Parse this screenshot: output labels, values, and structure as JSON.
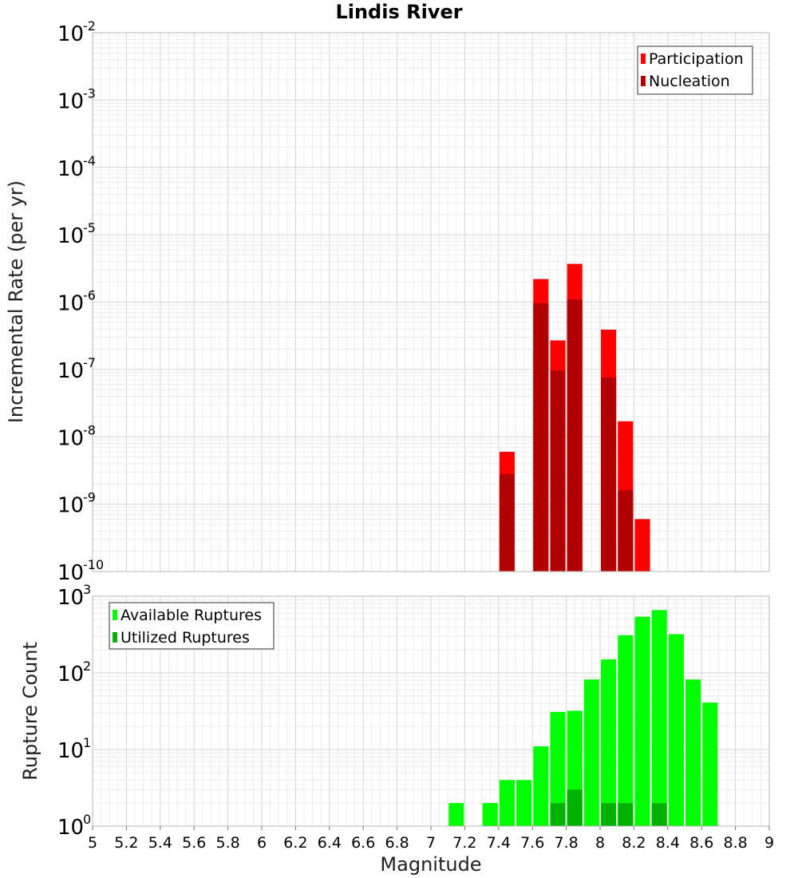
{
  "title": "Lindis River",
  "chart_data": [
    {
      "type": "bar",
      "subtype": "overlaid histogram",
      "scale_y": "log",
      "ylabel": "Incremental Rate (per yr)",
      "xlim": [
        5,
        9
      ],
      "ylim_exp": [
        -10,
        -2
      ],
      "grid": true,
      "legend_position": "top-right",
      "bar_width": 0.09,
      "series": [
        {
          "name": "Participation",
          "color": "#ff0000",
          "x": [
            7.45,
            7.65,
            7.75,
            7.85,
            8.05,
            8.15,
            8.25
          ],
          "values": [
            6e-09,
            2.2e-06,
            2.7e-07,
            3.7e-06,
            3.9e-07,
            1.7e-08,
            6e-10
          ]
        },
        {
          "name": "Nucleation",
          "color": "#b20000",
          "x": [
            7.45,
            7.65,
            7.75,
            7.85,
            8.05,
            8.15
          ],
          "values": [
            2.8e-09,
            9.6e-07,
            9.6e-08,
            1.1e-06,
            7.6e-08,
            1.6e-09
          ]
        }
      ]
    },
    {
      "type": "bar",
      "subtype": "overlaid histogram",
      "scale_y": "log",
      "ylabel": "Rupture Count",
      "xlabel": "Magnitude",
      "xlim": [
        5,
        9
      ],
      "ylim_exp": [
        0,
        3
      ],
      "grid": true,
      "legend_position": "top-left",
      "bar_width": 0.09,
      "xticks": [
        "5",
        "5.2",
        "5.4",
        "5.6",
        "5.8",
        "6",
        "6.2",
        "6.4",
        "6.6",
        "6.8",
        "7",
        "7.2",
        "7.4",
        "7.6",
        "7.8",
        "8",
        "8.2",
        "8.4",
        "8.6",
        "8.8",
        "9"
      ],
      "series": [
        {
          "name": "Available Ruptures",
          "color": "#00ff00",
          "x": [
            7.15,
            7.35,
            7.45,
            7.55,
            7.65,
            7.75,
            7.85,
            7.95,
            8.05,
            8.15,
            8.25,
            8.35,
            8.45,
            8.55,
            8.65
          ],
          "values": [
            2,
            2,
            4,
            4,
            11,
            31,
            32,
            82,
            150,
            310,
            540,
            660,
            320,
            82,
            41
          ]
        },
        {
          "name": "Utilized Ruptures",
          "color": "#00b200",
          "x": [
            7.45,
            7.65,
            7.75,
            7.85,
            8.05,
            8.15,
            8.25,
            8.35
          ],
          "values": [
            1,
            1,
            2,
            3,
            2,
            2,
            1,
            2
          ]
        }
      ]
    }
  ]
}
